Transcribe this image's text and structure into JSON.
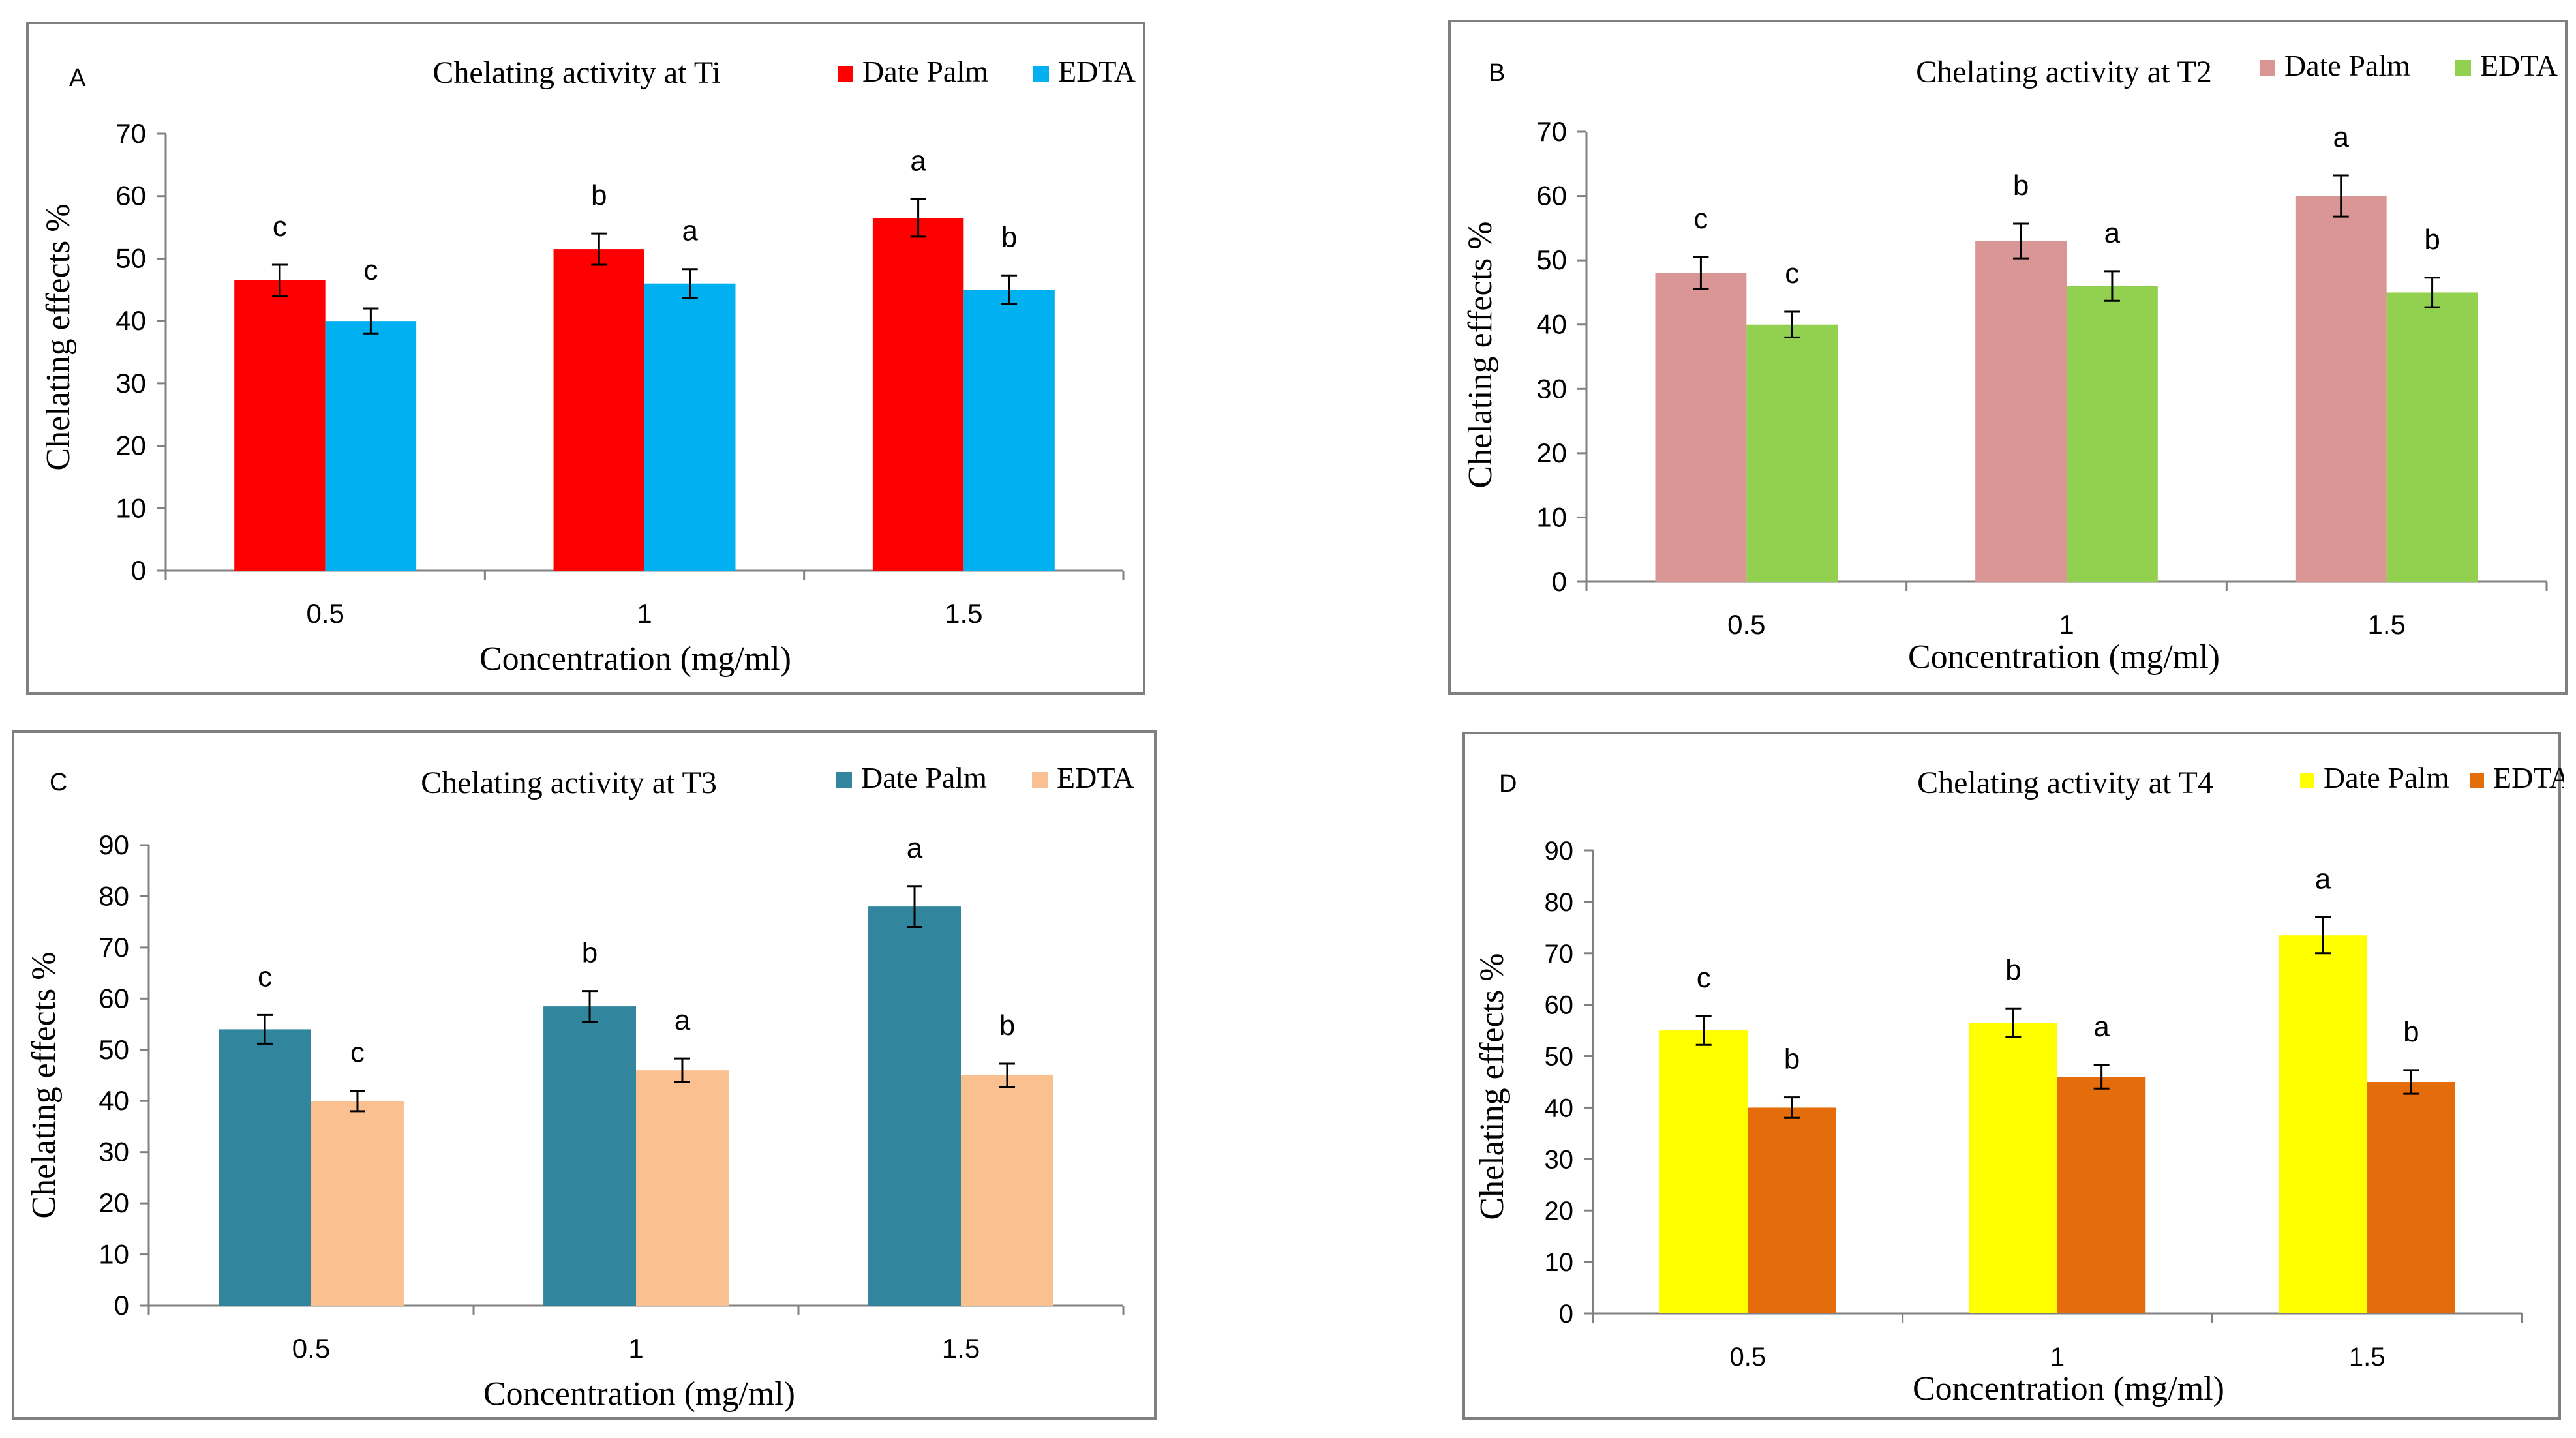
{
  "chart_data": [
    {
      "type": "bar",
      "panel_label": "A",
      "title": "Chelating  activity at Ti",
      "xlabel": "Concentration (mg/ml)",
      "ylabel": "Chelating effects %",
      "categories": [
        "0.5",
        "1",
        "1.5"
      ],
      "ylim": [
        0,
        70
      ],
      "yticks": [
        "0",
        "10",
        "20",
        "30",
        "40",
        "50",
        "60",
        "70"
      ],
      "legend_position": "top-right",
      "series": [
        {
          "name": "Date Palm",
          "color": "#ff0000",
          "values": [
            46.5,
            51.5,
            56.5
          ],
          "errors": [
            2.5,
            2.5,
            3
          ],
          "letters": [
            "c",
            "b",
            "a"
          ]
        },
        {
          "name": "EDTA",
          "color": "#00b0f0",
          "values": [
            40,
            46,
            45
          ],
          "errors": [
            2,
            2.3,
            2.3
          ],
          "letters": [
            "c",
            "a",
            "b"
          ]
        }
      ]
    },
    {
      "type": "bar",
      "panel_label": "B",
      "title": "Chelating  activity at T2",
      "xlabel": "Concentration (mg/ml)",
      "ylabel": "Chelating effects %",
      "categories": [
        "0.5",
        "1",
        "1.5"
      ],
      "ylim": [
        0,
        70
      ],
      "yticks": [
        "0",
        "10",
        "20",
        "30",
        "40",
        "50",
        "60",
        "70"
      ],
      "legend_position": "top-right",
      "series": [
        {
          "name": "Date Palm",
          "color": "#da9694",
          "values": [
            48,
            53,
            60
          ],
          "errors": [
            2.5,
            2.7,
            3.2
          ],
          "letters": [
            "c",
            "b",
            "a"
          ]
        },
        {
          "name": "EDTA",
          "color": "#92d050",
          "values": [
            40,
            46,
            45
          ],
          "errors": [
            2,
            2.3,
            2.3
          ],
          "letters": [
            "c",
            "a",
            "b"
          ]
        }
      ]
    },
    {
      "type": "bar",
      "panel_label": "C",
      "title": "Chelating  activity at T3",
      "xlabel": "Concentration (mg/ml)",
      "ylabel": "Chelating effects %",
      "categories": [
        "0.5",
        "1",
        "1.5"
      ],
      "ylim": [
        0,
        90
      ],
      "yticks": [
        "0",
        "10",
        "20",
        "30",
        "40",
        "50",
        "60",
        "70",
        "80",
        "90"
      ],
      "legend_position": "top-right",
      "series": [
        {
          "name": "Date Palm",
          "color": "#31859c",
          "values": [
            54,
            58.5,
            78
          ],
          "errors": [
            2.8,
            3,
            4
          ],
          "letters": [
            "c",
            "b",
            "a"
          ]
        },
        {
          "name": "EDTA",
          "color": "#fac090",
          "values": [
            40,
            46,
            45
          ],
          "errors": [
            2,
            2.3,
            2.3
          ],
          "letters": [
            "c",
            "a",
            "b"
          ]
        }
      ]
    },
    {
      "type": "bar",
      "panel_label": "D",
      "title": "Chelating  activity at T4",
      "xlabel": "Concentration (mg/ml)",
      "ylabel": "Chelating effects %",
      "categories": [
        "0.5",
        "1",
        "1.5"
      ],
      "ylim": [
        0,
        90
      ],
      "yticks": [
        "0",
        "10",
        "20",
        "30",
        "40",
        "50",
        "60",
        "70",
        "80",
        "90"
      ],
      "legend_position": "top-right",
      "series": [
        {
          "name": "Date Palm",
          "color": "#ffff00",
          "values": [
            55,
            56.5,
            73.5
          ],
          "errors": [
            2.8,
            2.8,
            3.5
          ],
          "letters": [
            "c",
            "b",
            "a"
          ]
        },
        {
          "name": "EDTA",
          "color": "#e46c0a",
          "values": [
            40,
            46,
            45
          ],
          "errors": [
            2,
            2.3,
            2.3
          ],
          "letters": [
            "b",
            "a",
            "b"
          ]
        }
      ]
    }
  ]
}
